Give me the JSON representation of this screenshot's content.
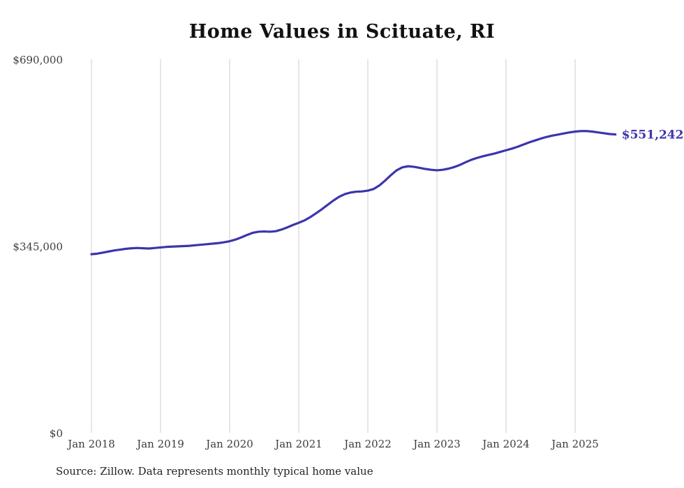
{
  "chart_data": {
    "type": "line",
    "title": "Home Values in Scituate, RI",
    "source": "Source: Zillow. Data represents monthly typical home value",
    "end_label": "$551,242",
    "line_color": "#3b35ad",
    "grid_color": "#cccccc",
    "tick_color": "#3c3c3c",
    "ylim": [
      0,
      690000
    ],
    "y_ticks": [
      {
        "label": "$0",
        "value": 0
      },
      {
        "label": "$345,000",
        "value": 345000
      },
      {
        "label": "$690,000",
        "value": 690000
      }
    ],
    "x_tick_labels": [
      "Jan 2018",
      "Jan 2019",
      "Jan 2020",
      "Jan 2021",
      "Jan 2022",
      "Jan 2023",
      "Jan 2024",
      "Jan 2025"
    ],
    "x": [
      "2018-01",
      "2018-02",
      "2018-03",
      "2018-04",
      "2018-05",
      "2018-06",
      "2018-07",
      "2018-08",
      "2018-09",
      "2018-10",
      "2018-11",
      "2018-12",
      "2019-01",
      "2019-02",
      "2019-03",
      "2019-04",
      "2019-05",
      "2019-06",
      "2019-07",
      "2019-08",
      "2019-09",
      "2019-10",
      "2019-11",
      "2019-12",
      "2020-01",
      "2020-02",
      "2020-03",
      "2020-04",
      "2020-05",
      "2020-06",
      "2020-07",
      "2020-08",
      "2020-09",
      "2020-10",
      "2020-11",
      "2020-12",
      "2021-01",
      "2021-02",
      "2021-03",
      "2021-04",
      "2021-05",
      "2021-06",
      "2021-07",
      "2021-08",
      "2021-09",
      "2021-10",
      "2021-11",
      "2021-12",
      "2022-01",
      "2022-02",
      "2022-03",
      "2022-04",
      "2022-05",
      "2022-06",
      "2022-07",
      "2022-08",
      "2022-09",
      "2022-10",
      "2022-11",
      "2022-12",
      "2023-01",
      "2023-02",
      "2023-03",
      "2023-04",
      "2023-05",
      "2023-06",
      "2023-07",
      "2023-08",
      "2023-09",
      "2023-10",
      "2023-11",
      "2023-12",
      "2024-01",
      "2024-02",
      "2024-03",
      "2024-04",
      "2024-05",
      "2024-06",
      "2024-07",
      "2024-08",
      "2024-09",
      "2024-10",
      "2024-11",
      "2024-12",
      "2025-01",
      "2025-02",
      "2025-03",
      "2025-04",
      "2025-05",
      "2025-06",
      "2025-07",
      "2025-08"
    ],
    "series": [
      {
        "name": "Typical home value",
        "values": [
          330000,
          331000,
          333000,
          335000,
          337000,
          338500,
          340000,
          341000,
          341500,
          341000,
          340500,
          341500,
          342500,
          343500,
          344000,
          344500,
          345000,
          345500,
          346500,
          347500,
          348500,
          349500,
          350500,
          352000,
          354000,
          357000,
          361000,
          365500,
          369500,
          371500,
          372000,
          371500,
          372500,
          375500,
          379500,
          384000,
          388000,
          392500,
          398500,
          405500,
          413000,
          421000,
          429000,
          436000,
          441000,
          444000,
          445500,
          446000,
          447500,
          450500,
          457000,
          466000,
          476000,
          485000,
          490500,
          492500,
          491500,
          489500,
          487500,
          486000,
          485000,
          486000,
          488000,
          491000,
          495000,
          500000,
          504500,
          508000,
          511000,
          513500,
          516000,
          519000,
          522000,
          525000,
          528500,
          532500,
          536500,
          540000,
          543500,
          546500,
          549000,
          551000,
          553000,
          555000,
          556500,
          557500,
          557500,
          556500,
          555000,
          553500,
          552000,
          551242
        ]
      }
    ],
    "grid": "vertical",
    "legend": "none"
  }
}
